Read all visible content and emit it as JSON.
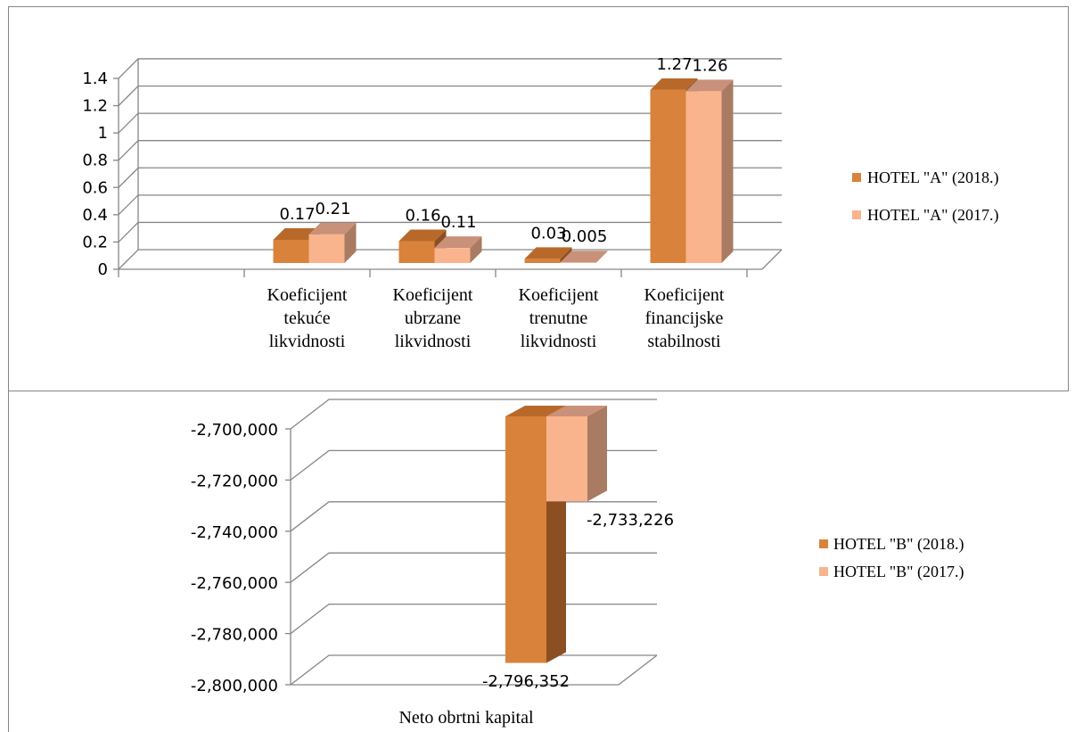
{
  "colors": {
    "series_2018_front": "#d9823b",
    "series_2018_top": "#b8692a",
    "series_2018_side": "#8c4f22",
    "series_2017_front": "#f9b48e",
    "series_2017_top": "#c9917a",
    "series_2017_side": "#a97b62",
    "grid": "#868686",
    "frame": "#868686"
  },
  "chart_data": [
    {
      "type": "bar",
      "ylim": [
        0,
        1.4
      ],
      "ytick_labels": [
        "0",
        "0.2",
        "0.4",
        "0.6",
        "0.8",
        "1",
        "1.2",
        "1.4"
      ],
      "yticks": [
        0,
        0.2,
        0.4,
        0.6,
        0.8,
        1,
        1.2,
        1.4
      ],
      "categories": [
        [
          "",
          "",
          ""
        ],
        [
          "Koeficijent",
          "tekuće",
          "likvidnosti"
        ],
        [
          "Koeficijent",
          "ubrzane",
          "likvidnosti"
        ],
        [
          "Koeficijent",
          "trenutne",
          "likvidnosti"
        ],
        [
          "Koeficijent",
          "financijske",
          "stabilnosti"
        ]
      ],
      "series": [
        {
          "name": "HOTEL \"A\" (2018.)",
          "values": [
            null,
            0.17,
            0.16,
            0.03,
            1.27
          ],
          "labels": [
            "",
            "0.17",
            "0.16",
            "0.03",
            "1.27"
          ]
        },
        {
          "name": "HOTEL \"A\" (2017.)",
          "values": [
            null,
            0.21,
            0.11,
            0.005,
            1.26
          ],
          "labels": [
            "",
            "0.21",
            "0.11",
            "0.005",
            "1.26"
          ]
        }
      ],
      "grid": true,
      "legend": "right"
    },
    {
      "type": "bar",
      "ylim": [
        -2800000,
        -2700000
      ],
      "ytick_labels": [
        "-2,700,000",
        "-2,720,000",
        "-2,740,000",
        "-2,760,000",
        "-2,780,000",
        "-2,800,000"
      ],
      "yticks": [
        -2700000,
        -2720000,
        -2740000,
        -2760000,
        -2780000,
        -2800000
      ],
      "categories": [
        "Neto obrtni kapital"
      ],
      "series": [
        {
          "name": "HOTEL \"B\" (2018.)",
          "values": [
            -2796352
          ],
          "labels": [
            "-2,796,352"
          ]
        },
        {
          "name": "HOTEL \"B\" (2017.)",
          "values": [
            -2733226
          ],
          "labels": [
            "-2,733,226"
          ]
        }
      ],
      "grid": true,
      "legend": "right"
    }
  ]
}
